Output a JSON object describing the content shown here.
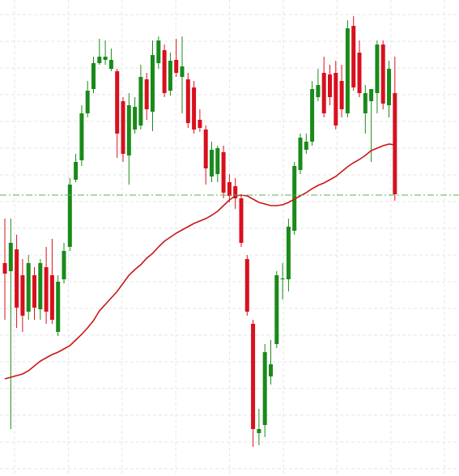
{
  "chart_data": {
    "type": "candlestick",
    "open": [
      263,
      253,
      280,
      248,
      203,
      248,
      206,
      258,
      248,
      178,
      243,
      283,
      366,
      390,
      448,
      478,
      510,
      514,
      503,
      500,
      463,
      396,
      428,
      433,
      490,
      450,
      510,
      526,
      476,
      514,
      493,
      490,
      480,
      440,
      428,
      370,
      373,
      400,
      363,
      358,
      343,
      268,
      188,
      53,
      63,
      123,
      163,
      243,
      243,
      303,
      378,
      403,
      413,
      468,
      498,
      496,
      498,
      488,
      448,
      556,
      523,
      448,
      463,
      473,
      533,
      458,
      473
    ],
    "high": [
      318,
      318,
      298,
      268,
      273,
      258,
      268,
      283,
      293,
      248,
      288,
      368,
      398,
      458,
      488,
      518,
      540,
      538,
      528,
      503,
      468,
      473,
      468,
      508,
      498,
      538,
      543,
      533,
      523,
      540,
      543,
      498,
      488,
      453,
      433,
      413,
      408,
      408,
      373,
      368,
      348,
      273,
      193,
      83,
      163,
      168,
      253,
      263,
      318,
      388,
      423,
      423,
      488,
      503,
      518,
      508,
      513,
      508,
      563,
      568,
      538,
      483,
      478,
      538,
      538,
      513,
      518
    ],
    "low": [
      193,
      58,
      183,
      178,
      193,
      193,
      193,
      188,
      188,
      173,
      238,
      278,
      363,
      383,
      443,
      473,
      508,
      508,
      500,
      393,
      388,
      360,
      423,
      428,
      440,
      426,
      503,
      468,
      470,
      493,
      448,
      430,
      423,
      425,
      360,
      363,
      363,
      343,
      338,
      330,
      283,
      198,
      36,
      38,
      48,
      113,
      158,
      218,
      228,
      298,
      373,
      398,
      408,
      463,
      443,
      458,
      428,
      443,
      443,
      476,
      468,
      423,
      388,
      448,
      453,
      443,
      340
    ],
    "close": [
      250,
      288,
      208,
      198,
      263,
      208,
      263,
      203,
      193,
      240,
      278,
      360,
      388,
      448,
      476,
      510,
      518,
      518,
      514,
      423,
      398,
      458,
      456,
      493,
      453,
      520,
      538,
      473,
      513,
      498,
      506,
      436,
      428,
      430,
      380,
      403,
      405,
      350,
      346,
      343,
      288,
      203,
      58,
      58,
      153,
      138,
      248,
      244,
      308,
      383,
      418,
      413,
      478,
      483,
      448,
      468,
      433,
      453,
      553,
      480,
      473,
      473,
      478,
      533,
      460,
      503,
      348
    ],
    "up_color": "#1a8a1a",
    "down_color": "#d8101e",
    "ma": {
      "color": "#cc1515",
      "values": [
        120,
        122,
        124,
        126,
        130,
        136,
        142,
        146,
        150,
        153,
        157,
        161,
        168,
        175,
        183,
        192,
        204,
        212,
        220,
        228,
        238,
        248,
        255,
        261,
        269,
        275,
        283,
        290,
        295,
        300,
        304,
        308,
        312,
        315,
        318,
        322,
        327,
        334,
        341,
        346,
        347,
        346,
        342,
        338,
        336,
        334,
        334,
        335,
        338,
        342,
        346,
        350,
        355,
        359,
        362,
        366,
        370,
        376,
        382,
        387,
        391,
        396,
        402,
        405,
        408,
        410,
        409
      ]
    },
    "hline": {
      "value": 347,
      "color": "#5fae5f"
    },
    "ylim": [
      0,
      588
    ],
    "grid": true
  }
}
